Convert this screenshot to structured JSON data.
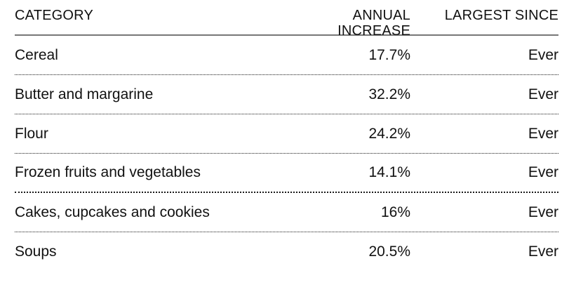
{
  "chart_data": {
    "type": "table",
    "columns": [
      "CATEGORY",
      "ANNUAL INCREASE",
      "LARGEST SINCE"
    ],
    "rows": [
      [
        "Cereal",
        "17.7%",
        "Ever"
      ],
      [
        "Butter and margarine",
        "32.2%",
        "Ever"
      ],
      [
        "Flour",
        "24.2%",
        "Ever"
      ],
      [
        "Frozen fruits and vegetables",
        "14.1%",
        "Ever"
      ],
      [
        "Cakes, cupcakes and cookies",
        "16%",
        "Ever"
      ],
      [
        "Soups",
        "20.5%",
        "Ever"
      ]
    ],
    "annual_increase_values": [
      17.7,
      32.2,
      24.2,
      14.1,
      16,
      20.5
    ],
    "largest_since_values": [
      "Ever",
      "Ever",
      "Ever",
      "Ever",
      "Ever",
      "Ever"
    ],
    "separators": [
      "dotted",
      "dotted",
      "dotted",
      "thick-dotted",
      "dotted",
      "none"
    ],
    "layout": {
      "header_rule_style": "solid",
      "row_separator_style": "dotted",
      "value_columns_align": "right",
      "category_column_align": "left"
    }
  },
  "colors": {
    "background": "#ffffff",
    "text": "#111111",
    "header_rule": "#777777",
    "row_separator": "#1a1a1a"
  }
}
